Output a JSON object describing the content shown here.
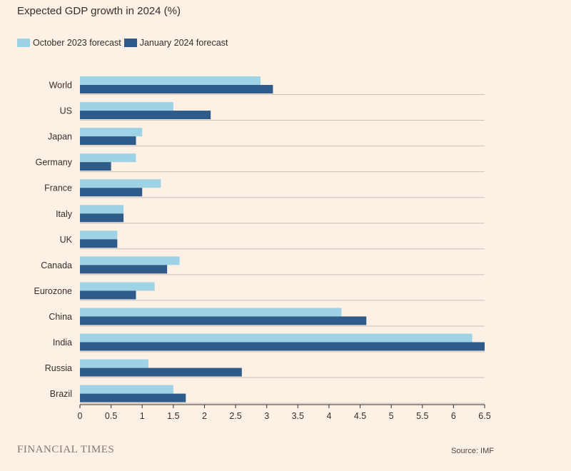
{
  "chart_data": {
    "type": "bar",
    "orientation": "horizontal",
    "title": "Expected GDP growth in 2024 (%)",
    "categories": [
      "World",
      "US",
      "Japan",
      "Germany",
      "France",
      "Italy",
      "UK",
      "Canada",
      "Eurozone",
      "China",
      "India",
      "Russia",
      "Brazil"
    ],
    "series": [
      {
        "name": "October 2023 forecast",
        "color": "#9dd3e4",
        "values": [
          2.9,
          1.5,
          1.0,
          0.9,
          1.3,
          0.7,
          0.6,
          1.6,
          1.2,
          4.2,
          6.3,
          1.1,
          1.5
        ]
      },
      {
        "name": "January 2024 forecast",
        "color": "#2e5b8a",
        "values": [
          3.1,
          2.1,
          0.9,
          0.5,
          1.0,
          0.7,
          0.6,
          1.4,
          0.9,
          4.6,
          6.5,
          2.6,
          1.7
        ]
      }
    ],
    "xlim": [
      0,
      6.5
    ],
    "xticks": [
      "0",
      "0.5",
      "1",
      "1.5",
      "2",
      "2.5",
      "3",
      "3.5",
      "4",
      "4.5",
      "5",
      "5.5",
      "6",
      "6.5"
    ],
    "xlabel": "",
    "ylabel": "",
    "legend_position": "top-left",
    "grid": true
  },
  "branding": "FINANCIAL TIMES",
  "source": "Source: IMF"
}
